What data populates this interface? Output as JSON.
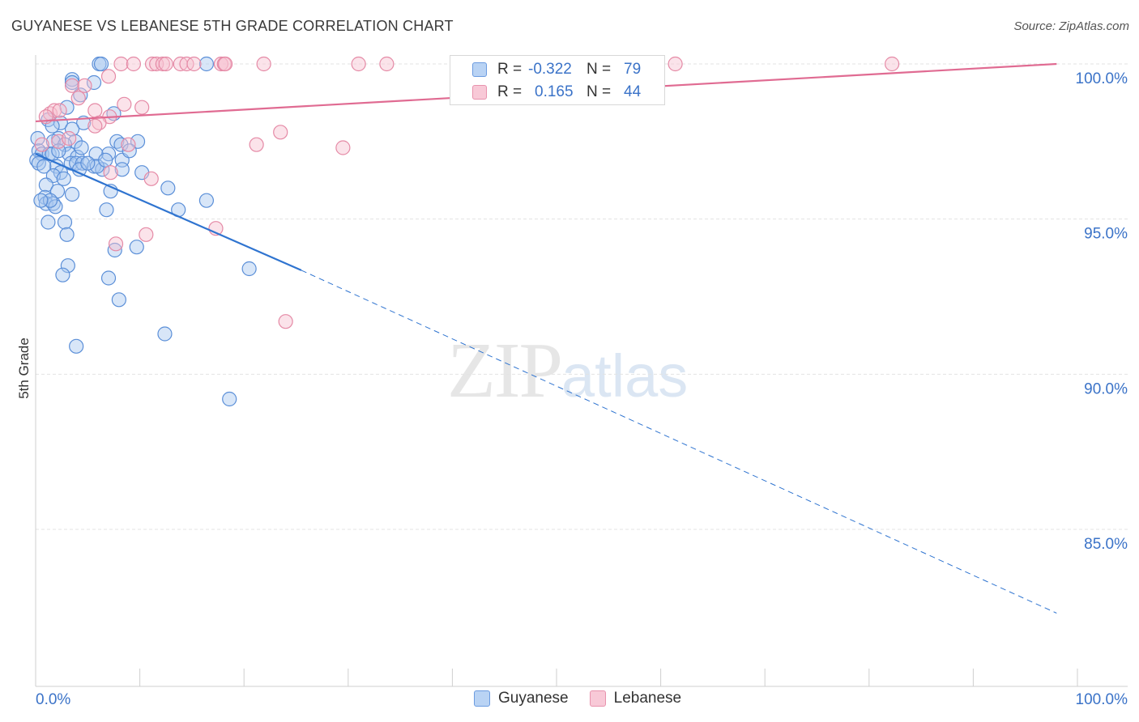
{
  "header": {
    "title": "GUYANESE VS LEBANESE 5TH GRADE CORRELATION CHART",
    "source": "Source: ZipAtlas.com"
  },
  "watermark": {
    "zip": "ZIP",
    "atlas": "atlas"
  },
  "legend": {
    "rows": [
      {
        "r_label": "R =",
        "r_value": "-0.322",
        "n_label": "N =",
        "n_value": "79"
      },
      {
        "r_label": "R =",
        "r_value": "0.165",
        "n_label": "N =",
        "n_value": "44"
      }
    ]
  },
  "bottom_legend": {
    "series1": "Guyanese",
    "series2": "Lebanese"
  },
  "colors": {
    "blue_fill": "#a9c8f0",
    "blue_stroke": "#5b8fd8",
    "blue_line": "#2f74d0",
    "pink_fill": "#f6c0d0",
    "pink_stroke": "#e58aa6",
    "pink_line": "#e06b92",
    "tick_label": "#3b73c8",
    "grid": "#e3e3e3"
  },
  "chart_data": {
    "type": "scatter",
    "title": "GUYANESE VS LEBANESE 5TH GRADE CORRELATION CHART",
    "xlabel": "",
    "ylabel": "5th Grade",
    "xlim": [
      0,
      100
    ],
    "ylim": [
      80.5,
      100.8
    ],
    "y_ticks": [
      85,
      90,
      95,
      100
    ],
    "y_tick_labels": [
      "85.0%",
      "90.0%",
      "95.0%",
      "100.0%"
    ],
    "x_tick_labels": [
      "0.0%",
      "100.0%"
    ],
    "series": [
      {
        "name": "Guyanese",
        "r": -0.322,
        "n": 79,
        "trend": {
          "x0": 0,
          "y0": 97.1,
          "x1": 25.5,
          "y1": 93.35,
          "dash_x1": 98,
          "dash_y1": 82.3
        },
        "points": [
          [
            6.1,
            100
          ],
          [
            6.3,
            100
          ],
          [
            16.4,
            100
          ],
          [
            3.5,
            99.5
          ],
          [
            5.6,
            99.4
          ],
          [
            3.5,
            99.4
          ],
          [
            4.3,
            99.0
          ],
          [
            3.0,
            98.6
          ],
          [
            7.5,
            98.4
          ],
          [
            1.2,
            98.2
          ],
          [
            2.4,
            98.1
          ],
          [
            4.6,
            98.1
          ],
          [
            1.6,
            98.0
          ],
          [
            3.5,
            97.9
          ],
          [
            0.2,
            97.6
          ],
          [
            2.2,
            97.6
          ],
          [
            3.8,
            97.5
          ],
          [
            7.8,
            97.5
          ],
          [
            8.2,
            97.4
          ],
          [
            9.8,
            97.5
          ],
          [
            1.7,
            97.5
          ],
          [
            2.8,
            97.4
          ],
          [
            0.3,
            97.2
          ],
          [
            0.6,
            97.1
          ],
          [
            1.3,
            97.1
          ],
          [
            1.6,
            97.1
          ],
          [
            3.2,
            97.1
          ],
          [
            4.0,
            97.0
          ],
          [
            7.0,
            97.1
          ],
          [
            5.8,
            97.1
          ],
          [
            8.3,
            96.9
          ],
          [
            0.1,
            96.9
          ],
          [
            0.3,
            96.8
          ],
          [
            3.4,
            96.8
          ],
          [
            3.9,
            96.8
          ],
          [
            4.5,
            96.8
          ],
          [
            5.6,
            96.7
          ],
          [
            2.0,
            96.7
          ],
          [
            0.8,
            96.7
          ],
          [
            4.2,
            96.6
          ],
          [
            6.4,
            96.6
          ],
          [
            5.9,
            96.7
          ],
          [
            8.3,
            96.6
          ],
          [
            2.4,
            96.5
          ],
          [
            1.7,
            96.4
          ],
          [
            10.2,
            96.5
          ],
          [
            1.0,
            96.1
          ],
          [
            7.2,
            95.9
          ],
          [
            12.7,
            96.0
          ],
          [
            2.1,
            95.9
          ],
          [
            0.9,
            95.7
          ],
          [
            3.5,
            95.8
          ],
          [
            1.0,
            95.5
          ],
          [
            1.7,
            95.5
          ],
          [
            1.9,
            95.4
          ],
          [
            16.4,
            95.6
          ],
          [
            6.8,
            95.3
          ],
          [
            13.7,
            95.3
          ],
          [
            1.2,
            94.9
          ],
          [
            2.8,
            94.9
          ],
          [
            3.0,
            94.5
          ],
          [
            7.6,
            94.0
          ],
          [
            9.7,
            94.1
          ],
          [
            3.1,
            93.5
          ],
          [
            2.6,
            93.2
          ],
          [
            20.5,
            93.4
          ],
          [
            7.0,
            93.1
          ],
          [
            8.0,
            92.4
          ],
          [
            12.4,
            91.3
          ],
          [
            3.9,
            90.9
          ],
          [
            18.6,
            89.2
          ],
          [
            2.2,
            97.2
          ],
          [
            4.4,
            97.3
          ],
          [
            6.7,
            96.9
          ],
          [
            5.0,
            96.8
          ],
          [
            1.4,
            95.6
          ],
          [
            0.5,
            95.6
          ],
          [
            9.0,
            97.2
          ],
          [
            2.7,
            96.3
          ]
        ]
      },
      {
        "name": "Lebanese",
        "r": 0.165,
        "n": 44,
        "trend": {
          "x0": 0,
          "y0": 98.15,
          "x1": 98,
          "y1": 100.0
        },
        "points": [
          [
            8.2,
            100
          ],
          [
            9.4,
            100
          ],
          [
            11.2,
            100
          ],
          [
            11.6,
            100
          ],
          [
            12.2,
            100
          ],
          [
            12.5,
            100
          ],
          [
            13.9,
            100
          ],
          [
            14.5,
            100
          ],
          [
            15.2,
            100
          ],
          [
            17.8,
            100
          ],
          [
            18.1,
            100
          ],
          [
            18.2,
            100
          ],
          [
            21.9,
            100
          ],
          [
            31.0,
            100
          ],
          [
            33.7,
            100
          ],
          [
            61.4,
            100
          ],
          [
            82.2,
            100
          ],
          [
            7.0,
            99.6
          ],
          [
            3.5,
            99.3
          ],
          [
            4.7,
            99.3
          ],
          [
            4.1,
            98.9
          ],
          [
            8.5,
            98.7
          ],
          [
            10.2,
            98.6
          ],
          [
            5.7,
            98.5
          ],
          [
            1.4,
            98.4
          ],
          [
            1.8,
            98.5
          ],
          [
            2.3,
            98.5
          ],
          [
            1.0,
            98.3
          ],
          [
            7.1,
            98.3
          ],
          [
            6.1,
            98.1
          ],
          [
            5.7,
            98.0
          ],
          [
            23.5,
            97.8
          ],
          [
            0.6,
            97.4
          ],
          [
            2.2,
            97.5
          ],
          [
            3.2,
            97.6
          ],
          [
            21.2,
            97.4
          ],
          [
            29.5,
            97.3
          ],
          [
            8.9,
            97.4
          ],
          [
            11.1,
            96.3
          ],
          [
            7.2,
            96.5
          ],
          [
            17.3,
            94.7
          ],
          [
            10.6,
            94.5
          ],
          [
            7.7,
            94.2
          ],
          [
            24.0,
            91.7
          ]
        ]
      }
    ]
  }
}
